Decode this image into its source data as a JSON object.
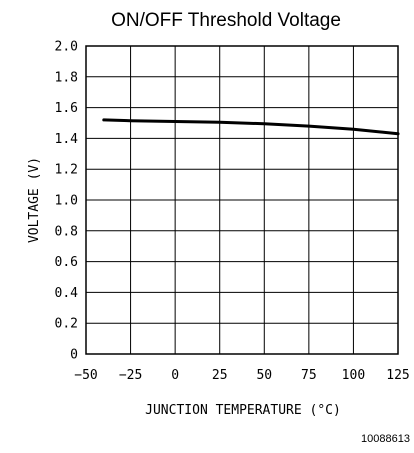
{
  "chart_data": {
    "type": "line",
    "title": "ON/OFF Threshold Voltage",
    "xlabel": "JUNCTION TEMPERATURE (°C)",
    "ylabel": "VOLTAGE (V)",
    "xlim": [
      -50,
      125
    ],
    "ylim": [
      0,
      2.0
    ],
    "x_ticks": [
      -50,
      -25,
      0,
      25,
      50,
      75,
      100,
      125
    ],
    "x_tick_labels": [
      "−50",
      "−25",
      "0",
      "25",
      "50",
      "75",
      "100",
      "125"
    ],
    "y_ticks": [
      0,
      0.2,
      0.4,
      0.6,
      0.8,
      1.0,
      1.2,
      1.4,
      1.6,
      1.8,
      2.0
    ],
    "y_tick_labels": [
      "0",
      "0.2",
      "0.4",
      "0.6",
      "0.8",
      "1.0",
      "1.2",
      "1.4",
      "1.6",
      "1.8",
      "2.0"
    ],
    "grid": true,
    "series": [
      {
        "x": [
          -40,
          -25,
          0,
          25,
          50,
          75,
          100,
          125
        ],
        "y": [
          1.52,
          1.515,
          1.51,
          1.505,
          1.495,
          1.48,
          1.46,
          1.43
        ]
      }
    ]
  },
  "figure_code": "10088613"
}
